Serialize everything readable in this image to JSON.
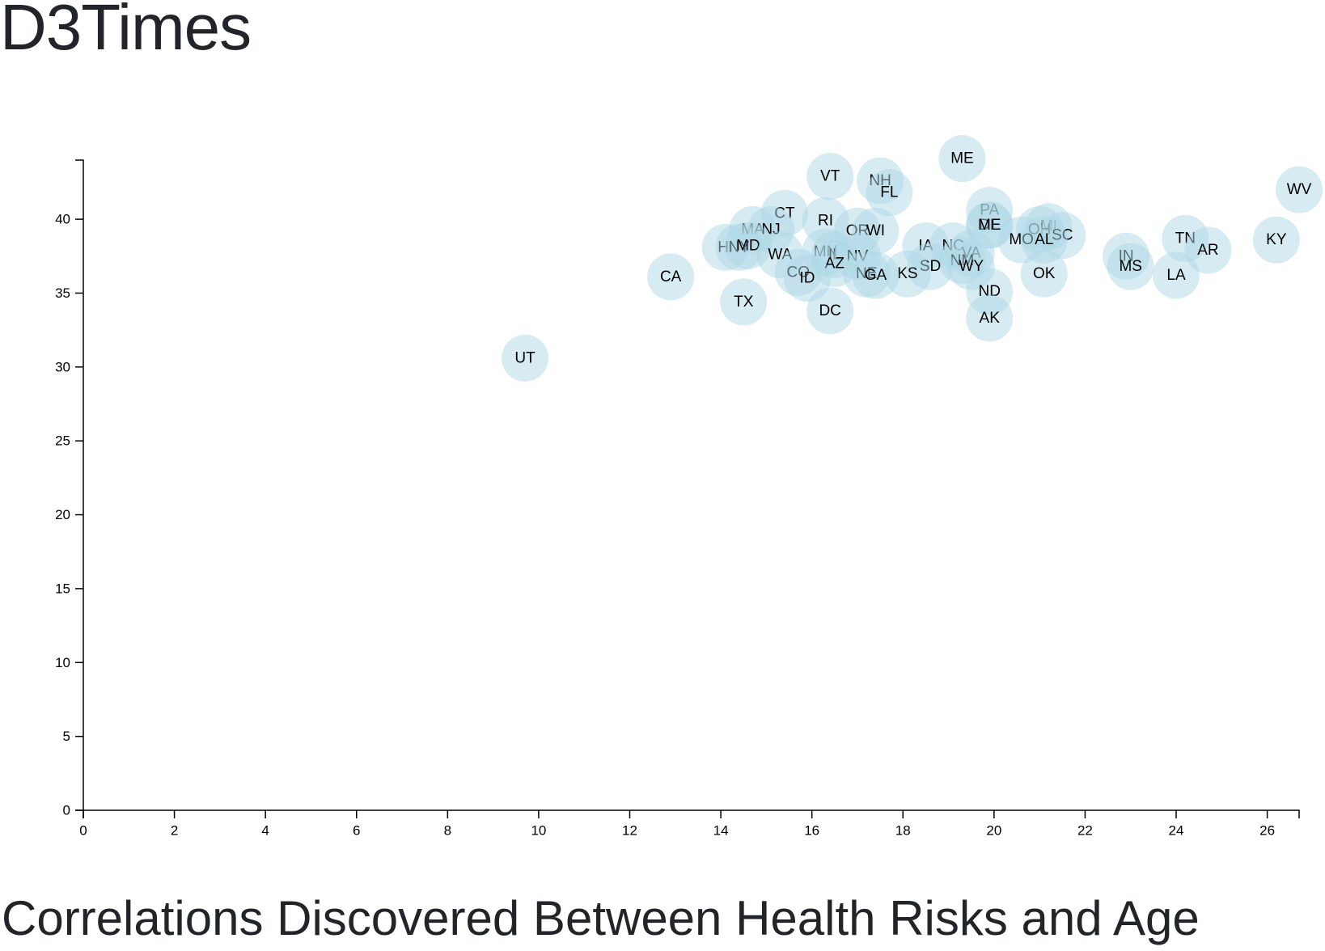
{
  "brand": "D3Times",
  "heading": "Correlations Discovered Between Health Risks and Age",
  "colors": {
    "point_fill": "#add8e6",
    "text": "#212529",
    "axis": "#000000"
  },
  "chart_data": {
    "type": "scatter",
    "title": "",
    "xlabel": "",
    "ylabel": "",
    "xlim": [
      0,
      26.7
    ],
    "ylim": [
      0,
      44
    ],
    "x_ticks": [
      0,
      2,
      4,
      6,
      8,
      10,
      12,
      14,
      16,
      18,
      20,
      22,
      24,
      26
    ],
    "y_ticks": [
      0,
      5,
      10,
      15,
      20,
      25,
      30,
      35,
      40
    ],
    "grid": false,
    "legend": "none",
    "points": [
      {
        "label": "ME",
        "x": 19.3,
        "y": 44.1
      },
      {
        "label": "VT",
        "x": 16.4,
        "y": 42.9
      },
      {
        "label": "NH",
        "x": 17.5,
        "y": 42.6
      },
      {
        "label": "WV",
        "x": 26.7,
        "y": 42.0
      },
      {
        "label": "FL",
        "x": 17.7,
        "y": 41.8
      },
      {
        "label": "CT",
        "x": 15.4,
        "y": 40.4
      },
      {
        "label": "PA",
        "x": 19.9,
        "y": 40.6
      },
      {
        "label": "DE",
        "x": 19.9,
        "y": 39.6
      },
      {
        "label": "ME",
        "x": 19.9,
        "y": 39.6
      },
      {
        "label": "RI",
        "x": 16.3,
        "y": 39.9
      },
      {
        "label": "MI",
        "x": 21.2,
        "y": 39.5
      },
      {
        "label": "MA",
        "x": 14.7,
        "y": 39.3
      },
      {
        "label": "NJ",
        "x": 15.1,
        "y": 39.3
      },
      {
        "label": "OH",
        "x": 21.0,
        "y": 39.3
      },
      {
        "label": "OR",
        "x": 17.0,
        "y": 39.2
      },
      {
        "label": "WI",
        "x": 17.4,
        "y": 39.2
      },
      {
        "label": "SC",
        "x": 21.5,
        "y": 38.9
      },
      {
        "label": "MO",
        "x": 20.6,
        "y": 38.6
      },
      {
        "label": "AL",
        "x": 21.1,
        "y": 38.6
      },
      {
        "label": "TN",
        "x": 24.2,
        "y": 38.7
      },
      {
        "label": "KY",
        "x": 26.2,
        "y": 38.6
      },
      {
        "label": "IA",
        "x": 18.5,
        "y": 38.2
      },
      {
        "label": "NC",
        "x": 19.1,
        "y": 38.2
      },
      {
        "label": "HI",
        "x": 14.1,
        "y": 38.1
      },
      {
        "label": "NY",
        "x": 14.4,
        "y": 38.1
      },
      {
        "label": "MD",
        "x": 14.6,
        "y": 38.2
      },
      {
        "label": "AR",
        "x": 24.7,
        "y": 37.9
      },
      {
        "label": "MN",
        "x": 16.3,
        "y": 37.8
      },
      {
        "label": "IL",
        "x": 16.5,
        "y": 37.6
      },
      {
        "label": "VA",
        "x": 19.5,
        "y": 37.7
      },
      {
        "label": "WA",
        "x": 15.3,
        "y": 37.6
      },
      {
        "label": "NV",
        "x": 17.0,
        "y": 37.5
      },
      {
        "label": "IN",
        "x": 22.9,
        "y": 37.5
      },
      {
        "label": "NM",
        "x": 19.3,
        "y": 37.2
      },
      {
        "label": "AZ",
        "x": 16.5,
        "y": 37.0
      },
      {
        "label": "MS",
        "x": 23.0,
        "y": 36.8
      },
      {
        "label": "SD",
        "x": 18.6,
        "y": 36.8
      },
      {
        "label": "WY",
        "x": 19.5,
        "y": 36.8
      },
      {
        "label": "KS",
        "x": 18.1,
        "y": 36.3
      },
      {
        "label": "CO",
        "x": 15.7,
        "y": 36.4
      },
      {
        "label": "OK",
        "x": 21.1,
        "y": 36.3
      },
      {
        "label": "NE",
        "x": 17.2,
        "y": 36.3
      },
      {
        "label": "GA",
        "x": 17.4,
        "y": 36.2
      },
      {
        "label": "CA",
        "x": 12.9,
        "y": 36.1
      },
      {
        "label": "LA",
        "x": 24.0,
        "y": 36.2
      },
      {
        "label": "ID",
        "x": 15.9,
        "y": 36.0
      },
      {
        "label": "ND",
        "x": 19.9,
        "y": 35.1
      },
      {
        "label": "TX",
        "x": 14.5,
        "y": 34.4
      },
      {
        "label": "DC",
        "x": 16.4,
        "y": 33.8
      },
      {
        "label": "AK",
        "x": 19.9,
        "y": 33.3
      },
      {
        "label": "UT",
        "x": 9.7,
        "y": 30.6
      }
    ]
  }
}
